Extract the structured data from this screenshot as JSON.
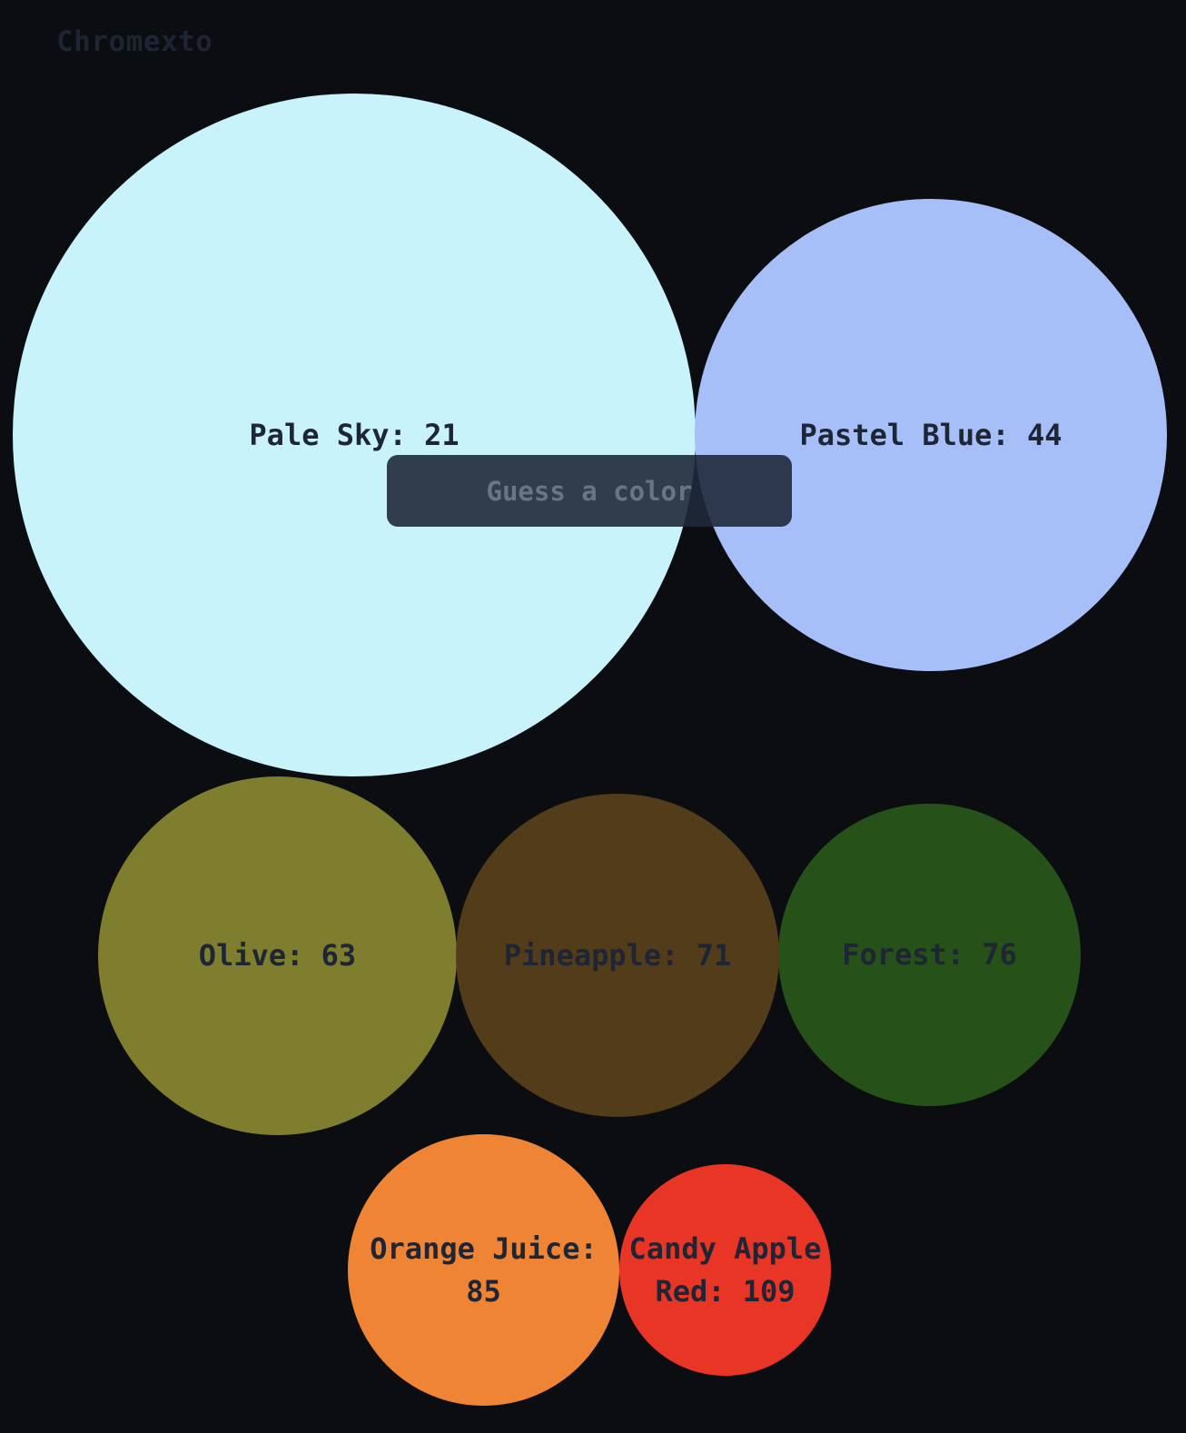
{
  "app": {
    "title": "Chromexto"
  },
  "guess": {
    "placeholder": "Guess a color",
    "value": ""
  },
  "guesses": [
    {
      "name": "Pale Sky",
      "rank": 21,
      "label": "Pale Sky: 21",
      "color": "#c8f3fb"
    },
    {
      "name": "Pastel Blue",
      "rank": 44,
      "label": "Pastel Blue: 44",
      "color": "#a7bff9"
    },
    {
      "name": "Olive",
      "rank": 63,
      "label": "Olive: 63",
      "color": "#7f7d2e"
    },
    {
      "name": "Pineapple",
      "rank": 71,
      "label": "Pineapple: 71",
      "color": "#533c1a"
    },
    {
      "name": "Forest",
      "rank": 76,
      "label": "Forest: 76",
      "color": "#265119"
    },
    {
      "name": "Orange Juice",
      "rank": 85,
      "label": "Orange Juice: 85",
      "color": "#ef8534"
    },
    {
      "name": "Candy Apple Red",
      "rank": 109,
      "label": "Candy Apple Red: 109",
      "color": "#e93526"
    }
  ]
}
